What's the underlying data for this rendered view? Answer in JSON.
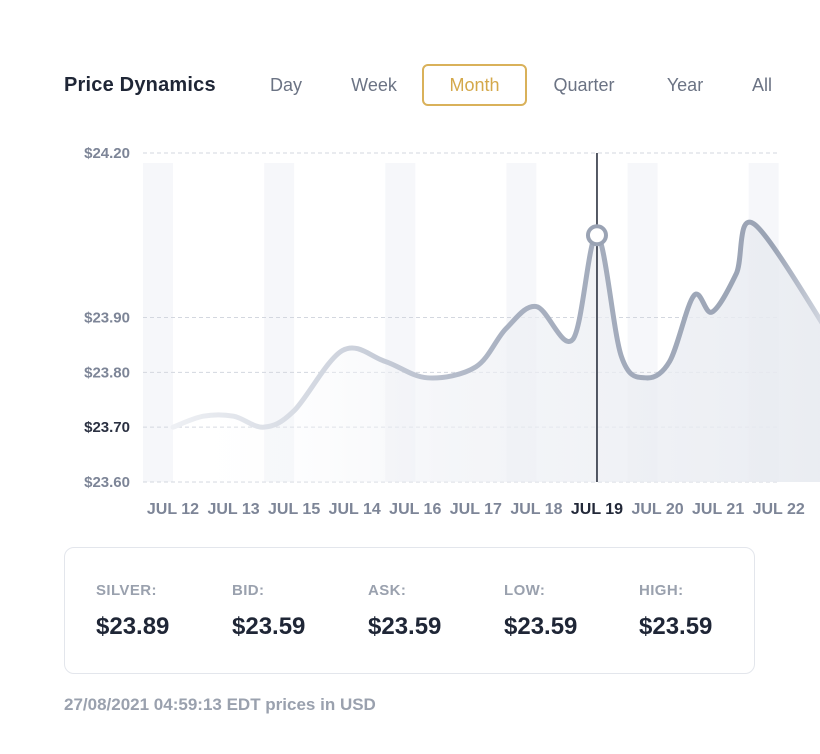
{
  "header": {
    "title": "Price Dynamics",
    "tabs": [
      {
        "label": "Day",
        "active": false
      },
      {
        "label": "Week",
        "active": false
      },
      {
        "label": "Month",
        "active": true
      },
      {
        "label": "Quarter",
        "active": false
      },
      {
        "label": "Year",
        "active": false
      },
      {
        "label": "All",
        "active": false
      }
    ]
  },
  "chart_data": {
    "type": "area",
    "categories": [
      "JUL 12",
      "JUL 13",
      "JUL 15",
      "JUL 14",
      "JUL 16",
      "JUL 17",
      "JUL 18",
      "JUL 19",
      "JUL 20",
      "JUL 21",
      "JUL 22"
    ],
    "y_ticks": [
      "$24.20",
      "$23.90",
      "$23.80",
      "$23.70",
      "$23.60"
    ],
    "ylim": [
      23.6,
      24.2
    ],
    "highlighted_category": "JUL 19",
    "highlighted_value": 24.05,
    "series": [
      {
        "values": [
          [
            0.0,
            23.7
          ],
          [
            0.5,
            23.72
          ],
          [
            1.0,
            23.72
          ],
          [
            1.5,
            23.7
          ],
          [
            2.0,
            23.73
          ],
          [
            2.8,
            23.84
          ],
          [
            3.5,
            23.82
          ],
          [
            4.2,
            23.79
          ],
          [
            5.0,
            23.81
          ],
          [
            5.5,
            23.88
          ],
          [
            6.0,
            23.92
          ],
          [
            6.6,
            23.86
          ],
          [
            7.0,
            24.05
          ],
          [
            7.4,
            23.83
          ],
          [
            7.8,
            23.79
          ],
          [
            8.2,
            23.82
          ],
          [
            8.6,
            23.94
          ],
          [
            8.9,
            23.91
          ],
          [
            9.3,
            23.98
          ],
          [
            9.6,
            24.07
          ],
          [
            11.0,
            23.84
          ]
        ]
      }
    ],
    "grid": true,
    "colors": {
      "line": "#9aa3b4",
      "band": "#eef0f5",
      "marker_line": "#1e2433",
      "accent": "#d9b15a"
    }
  },
  "stats": [
    {
      "label": "SILVER:",
      "value": "$23.89"
    },
    {
      "label": "BID:",
      "value": "$23.59"
    },
    {
      "label": "ASK:",
      "value": "$23.59"
    },
    {
      "label": "LOW:",
      "value": "$23.59"
    },
    {
      "label": "HIGH:",
      "value": "$23.59"
    }
  ],
  "footer": {
    "text": "27/08/2021 04:59:13 EDT prices in USD"
  }
}
